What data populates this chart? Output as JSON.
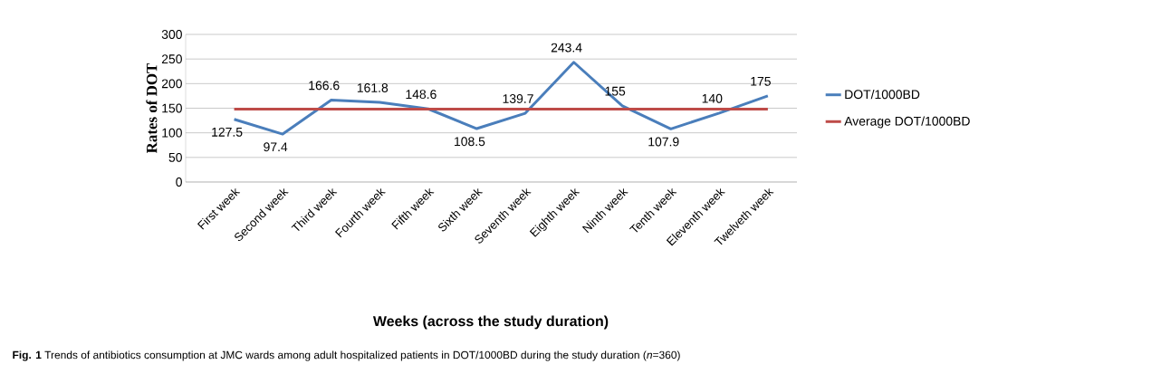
{
  "chart_data": {
    "type": "line",
    "categories": [
      "First week",
      "Second week",
      "Third week",
      "Fourth week",
      "Fifth week",
      "Sixth week",
      "Seventh week",
      "Eighth week",
      "Ninth week",
      "Tenth week",
      "Eleventh week",
      "Twelveth week"
    ],
    "series": [
      {
        "name": "DOT/1000BD",
        "color": "#4a7ebb",
        "values": [
          127.5,
          97.4,
          166.6,
          161.8,
          148.6,
          108.5,
          139.7,
          243.4,
          155,
          107.9,
          140,
          175
        ],
        "value_labels": [
          "127.5",
          "97.4",
          "166.6",
          "161.8",
          "148.6",
          "108.5",
          "139.7",
          "243.4",
          "155",
          "107.9",
          "140",
          "175"
        ]
      },
      {
        "name": "Average DOT/1000BD",
        "color": "#be4b48",
        "values": [
          148,
          148,
          148,
          148,
          148,
          148,
          148,
          148,
          148,
          148,
          148,
          148
        ]
      }
    ],
    "xlabel": "**Weeks (across the study duration)**",
    "ylabel": "Rates of  DOT",
    "ylim": [
      0,
      300
    ],
    "yticks": [
      0,
      50,
      100,
      150,
      200,
      250,
      300
    ],
    "grid": "y",
    "legend": "right",
    "marker": "none",
    "line_style": "solid",
    "annotations": [
      "**Fig. 1** Trends of antibiotics consumption at JMC wards among adult hospitalized patients in DOT/1000BD during the study duration (*n*=360)"
    ]
  }
}
